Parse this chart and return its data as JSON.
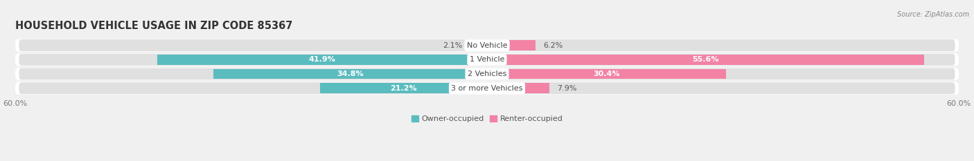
{
  "title": "HOUSEHOLD VEHICLE USAGE IN ZIP CODE 85367",
  "source": "Source: ZipAtlas.com",
  "categories": [
    "No Vehicle",
    "1 Vehicle",
    "2 Vehicles",
    "3 or more Vehicles"
  ],
  "owner_values": [
    2.1,
    41.9,
    34.8,
    21.2
  ],
  "renter_values": [
    6.2,
    55.6,
    30.4,
    7.9
  ],
  "owner_color": "#5bbcbf",
  "renter_color": "#f283a5",
  "owner_label": "Owner-occupied",
  "renter_label": "Renter-occupied",
  "xlim_left": -60,
  "xlim_right": 60,
  "bar_height": 0.72,
  "background_color": "#f0f0f0",
  "bar_background_color": "#e0e0e0",
  "row_background_color": "#e8e8e8",
  "label_fontsize": 8.0,
  "title_fontsize": 10.5,
  "value_fontsize": 8.0
}
